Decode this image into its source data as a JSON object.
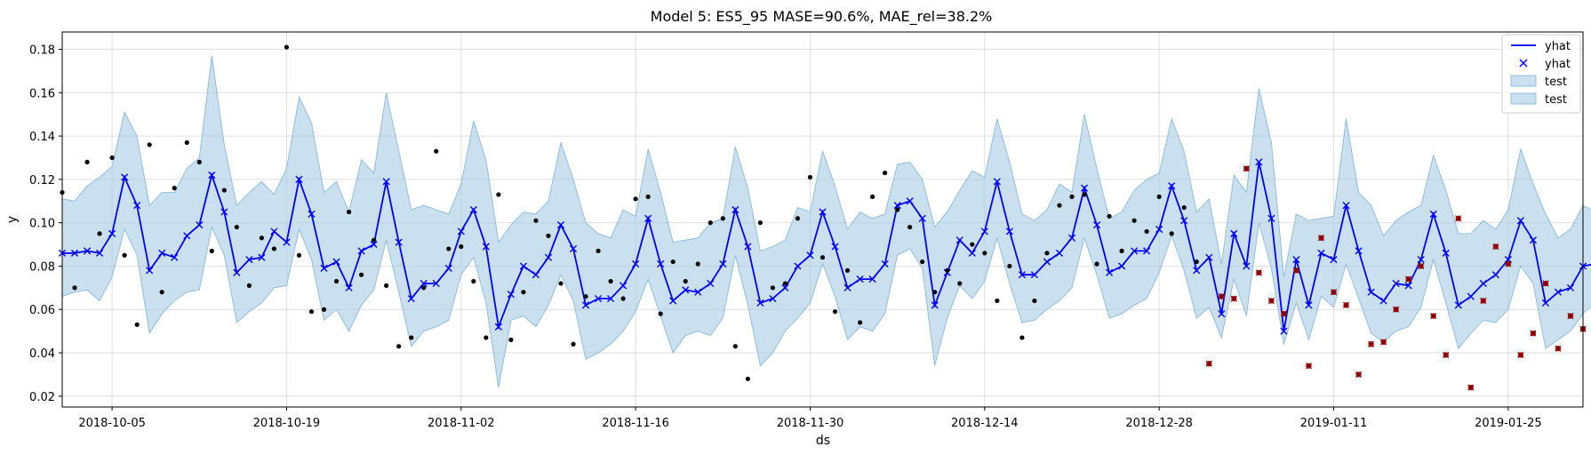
{
  "chart_data": {
    "type": "line",
    "title": "Model 5: ES5_95 MASE=90.6%, MAE_rel=38.2%",
    "xlabel": "ds",
    "ylabel": "y",
    "x_start": "2018-10-01",
    "x_end": "2019-01-31",
    "xlim": [
      "2018-10-01",
      "2019-01-31"
    ],
    "ylim": [
      0.015,
      0.188
    ],
    "yticks": [
      0.02,
      0.04,
      0.06,
      0.08,
      0.1,
      0.12,
      0.14,
      0.16,
      0.18
    ],
    "ytick_labels": [
      "0.02",
      "0.04",
      "0.06",
      "0.08",
      "0.10",
      "0.12",
      "0.14",
      "0.16",
      "0.18"
    ],
    "xticks": [
      "2018-10-05",
      "2018-10-19",
      "2018-11-02",
      "2018-11-16",
      "2018-11-30",
      "2018-12-14",
      "2018-12-28",
      "2019-01-11",
      "2019-01-25"
    ],
    "grid": true,
    "legend_position": "top-right",
    "legend": [
      {
        "label": "yhat",
        "kind": "line"
      },
      {
        "label": "yhat",
        "kind": "marker"
      },
      {
        "label": "test",
        "kind": "patch"
      },
      {
        "label": "test",
        "kind": "patch"
      }
    ],
    "colors": {
      "yhat": "#0000ff",
      "band_fill": "#a6cbe3",
      "band_edge": "#7eb3d6",
      "actual_train": "#000000",
      "actual_test": "#cc0000"
    },
    "test_start_date": "2019-01-01",
    "yhat": [
      0.086,
      0.086,
      0.087,
      0.086,
      0.095,
      0.121,
      0.108,
      0.078,
      0.086,
      0.084,
      0.094,
      0.099,
      0.122,
      0.105,
      0.077,
      0.083,
      0.084,
      0.096,
      0.091,
      0.12,
      0.104,
      0.079,
      0.082,
      0.07,
      0.087,
      0.09,
      0.119,
      0.091,
      0.065,
      0.072,
      0.072,
      0.079,
      0.096,
      0.106,
      0.089,
      0.052,
      0.067,
      0.08,
      0.076,
      0.084,
      0.099,
      0.088,
      0.062,
      0.065,
      0.065,
      0.071,
      0.081,
      0.102,
      0.081,
      0.064,
      0.069,
      0.068,
      0.072,
      0.081,
      0.106,
      0.089,
      0.063,
      0.065,
      0.07,
      0.08,
      0.085,
      0.105,
      0.089,
      0.07,
      0.074,
      0.074,
      0.081,
      0.108,
      0.11,
      0.102,
      0.062,
      0.077,
      0.092,
      0.086,
      0.096,
      0.119,
      0.096,
      0.076,
      0.076,
      0.082,
      0.086,
      0.093,
      0.116,
      0.099,
      0.077,
      0.08,
      0.087,
      0.087,
      0.097,
      0.117,
      0.101,
      0.078,
      0.084,
      0.058,
      0.095,
      0.08,
      0.128,
      0.102,
      0.05,
      0.083,
      0.062,
      0.086,
      0.083,
      0.108,
      0.087,
      0.068,
      0.064,
      0.072,
      0.071,
      0.083,
      0.104,
      0.086,
      0.062,
      0.066,
      0.072,
      0.076,
      0.083,
      0.101,
      0.092,
      0.063,
      0.068,
      0.07,
      0.08,
      0.081
    ],
    "lower": [
      0.066,
      0.068,
      0.069,
      0.064,
      0.075,
      0.097,
      0.085,
      0.049,
      0.058,
      0.064,
      0.068,
      0.069,
      0.098,
      0.085,
      0.054,
      0.059,
      0.063,
      0.07,
      0.071,
      0.097,
      0.083,
      0.055,
      0.06,
      0.05,
      0.062,
      0.069,
      0.092,
      0.068,
      0.043,
      0.05,
      0.052,
      0.055,
      0.076,
      0.084,
      0.063,
      0.024,
      0.055,
      0.057,
      0.052,
      0.062,
      0.076,
      0.064,
      0.037,
      0.04,
      0.044,
      0.05,
      0.059,
      0.074,
      0.057,
      0.04,
      0.048,
      0.05,
      0.048,
      0.056,
      0.085,
      0.062,
      0.034,
      0.04,
      0.05,
      0.056,
      0.063,
      0.081,
      0.066,
      0.046,
      0.052,
      0.05,
      0.058,
      0.085,
      0.088,
      0.079,
      0.034,
      0.056,
      0.071,
      0.065,
      0.073,
      0.093,
      0.072,
      0.054,
      0.055,
      0.06,
      0.064,
      0.07,
      0.093,
      0.076,
      0.056,
      0.058,
      0.062,
      0.065,
      0.077,
      0.094,
      0.078,
      0.056,
      0.061,
      0.047,
      0.074,
      0.057,
      0.1,
      0.079,
      0.044,
      0.063,
      0.046,
      0.066,
      0.061,
      0.081,
      0.065,
      0.049,
      0.045,
      0.05,
      0.052,
      0.061,
      0.083,
      0.063,
      0.042,
      0.049,
      0.055,
      0.054,
      0.06,
      0.08,
      0.072,
      0.042,
      0.046,
      0.05,
      0.058,
      0.063
    ],
    "upper": [
      0.111,
      0.11,
      0.117,
      0.121,
      0.126,
      0.151,
      0.14,
      0.108,
      0.114,
      0.114,
      0.125,
      0.13,
      0.177,
      0.136,
      0.108,
      0.114,
      0.119,
      0.113,
      0.125,
      0.158,
      0.146,
      0.114,
      0.119,
      0.105,
      0.129,
      0.123,
      0.16,
      0.133,
      0.106,
      0.108,
      0.106,
      0.104,
      0.118,
      0.147,
      0.129,
      0.091,
      0.099,
      0.105,
      0.104,
      0.11,
      0.137,
      0.12,
      0.1,
      0.095,
      0.093,
      0.106,
      0.103,
      0.134,
      0.114,
      0.091,
      0.092,
      0.093,
      0.1,
      0.102,
      0.135,
      0.116,
      0.087,
      0.089,
      0.092,
      0.107,
      0.105,
      0.133,
      0.117,
      0.097,
      0.105,
      0.102,
      0.104,
      0.127,
      0.128,
      0.12,
      0.098,
      0.105,
      0.115,
      0.124,
      0.121,
      0.148,
      0.128,
      0.104,
      0.101,
      0.106,
      0.118,
      0.114,
      0.15,
      0.125,
      0.102,
      0.105,
      0.115,
      0.12,
      0.123,
      0.148,
      0.133,
      0.105,
      0.111,
      0.081,
      0.122,
      0.114,
      0.162,
      0.137,
      0.075,
      0.104,
      0.101,
      0.102,
      0.103,
      0.148,
      0.114,
      0.108,
      0.094,
      0.101,
      0.105,
      0.108,
      0.131,
      0.115,
      0.095,
      0.095,
      0.101,
      0.097,
      0.106,
      0.134,
      0.118,
      0.104,
      0.093,
      0.097,
      0.108,
      0.105
    ],
    "actual": [
      0.114,
      0.07,
      0.128,
      0.095,
      0.13,
      0.085,
      0.053,
      0.136,
      0.068,
      0.116,
      0.137,
      0.128,
      0.087,
      0.115,
      0.098,
      0.071,
      0.093,
      0.088,
      0.181,
      0.085,
      0.059,
      0.06,
      0.073,
      0.105,
      0.076,
      0.092,
      0.071,
      0.043,
      0.047,
      0.07,
      0.133,
      0.088,
      0.089,
      0.073,
      0.047,
      0.113,
      0.046,
      0.068,
      0.101,
      0.094,
      0.072,
      0.044,
      0.066,
      0.087,
      0.073,
      0.065,
      0.111,
      0.112,
      0.058,
      0.082,
      0.073,
      0.081,
      0.1,
      0.102,
      0.043,
      0.028,
      0.1,
      0.07,
      0.072,
      0.102,
      0.121,
      0.084,
      0.059,
      0.078,
      0.054,
      0.112,
      0.123,
      0.106,
      0.098,
      0.082,
      0.068,
      0.078,
      0.072,
      0.09,
      0.086,
      0.064,
      0.08,
      0.047,
      0.064,
      0.086,
      0.108,
      0.112,
      0.113,
      0.081,
      0.103,
      0.087,
      0.101,
      0.096,
      0.112,
      0.095,
      0.107,
      0.082,
      0.035,
      0.066,
      0.065,
      0.125,
      0.077,
      0.064,
      0.058,
      0.078,
      0.034,
      0.093,
      0.068,
      0.062,
      0.03,
      0.044,
      0.045,
      0.06,
      0.074,
      0.08,
      0.057,
      0.039,
      0.102,
      0.024,
      0.064,
      0.089,
      0.081,
      0.039,
      0.049,
      0.072,
      0.042,
      0.057,
      0.051
    ]
  }
}
